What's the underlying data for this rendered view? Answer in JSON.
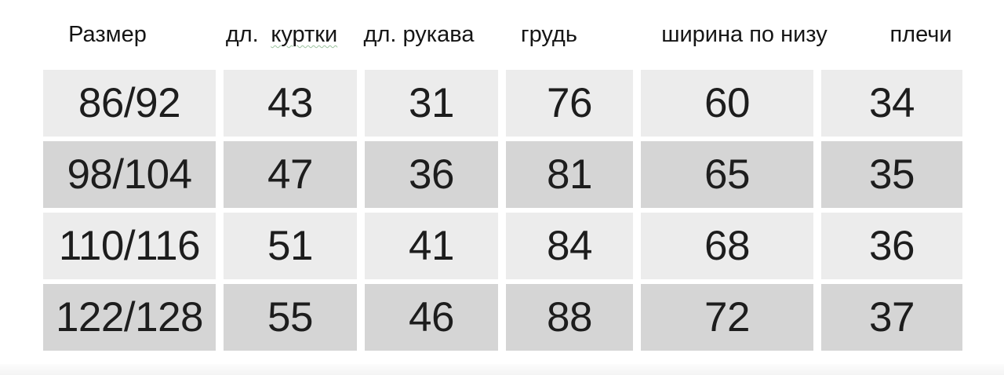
{
  "table": {
    "headers": [
      {
        "label": "Размер"
      },
      {
        "label_prefix": "дл.",
        "label_main": "куртки",
        "spellcheck_underline": true
      },
      {
        "label": "дл. рукава"
      },
      {
        "label": "грудь"
      },
      {
        "label": "ширина по низу"
      },
      {
        "label": "плечи"
      }
    ],
    "colors": {
      "row_light": "#ececec",
      "row_dark": "#d5d5d5",
      "text": "#1d1d1d",
      "spellcheck_squiggle": "#4c9452",
      "bottom_bar": "#f6f6f6"
    }
  },
  "chart_data": {
    "type": "table",
    "title": "",
    "columns": [
      "Размер",
      "дл. куртки",
      "дл. рукава",
      "грудь",
      "ширина по низу",
      "плечи"
    ],
    "rows": [
      [
        "86/92",
        "43",
        "31",
        "76",
        "60",
        "34"
      ],
      [
        "98/104",
        "47",
        "36",
        "81",
        "65",
        "35"
      ],
      [
        "110/116",
        "51",
        "41",
        "84",
        "68",
        "36"
      ],
      [
        "122/128",
        "55",
        "46",
        "88",
        "72",
        "37"
      ]
    ]
  }
}
